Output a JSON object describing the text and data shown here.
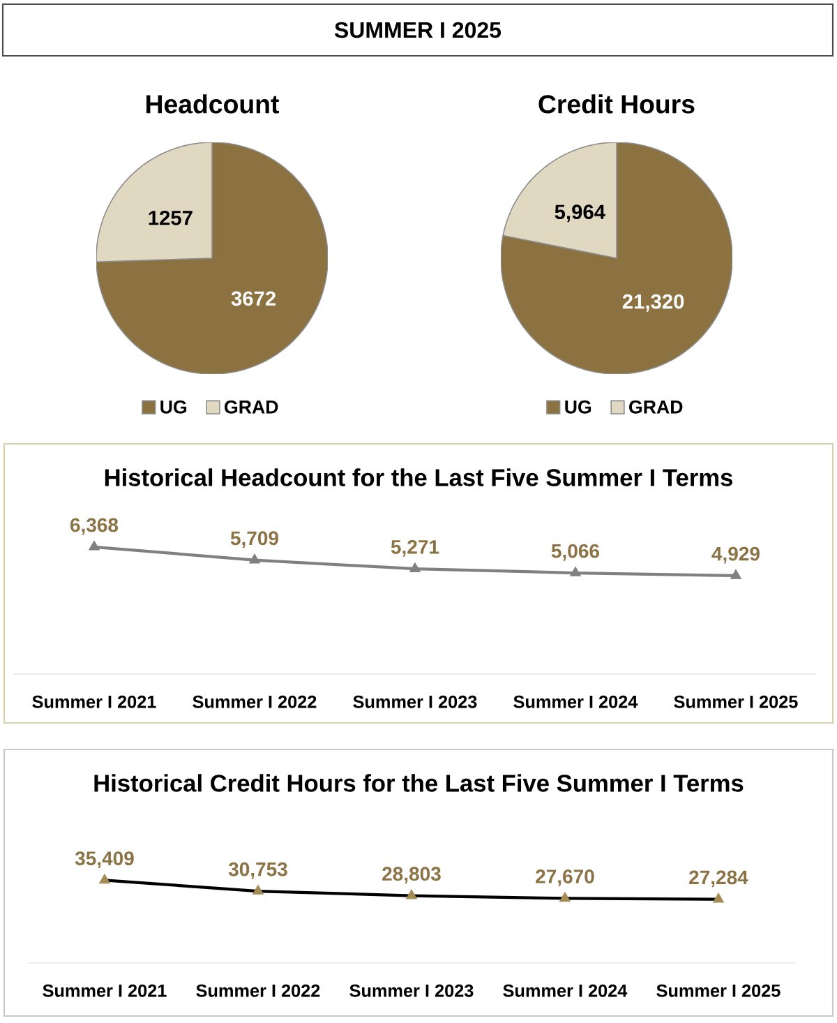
{
  "chart_data": [
    {
      "type": "other",
      "title": "SUMMER I 2025"
    },
    {
      "type": "pie",
      "title": "Headcount",
      "categories": [
        "UG",
        "GRAD"
      ],
      "values": [
        3672,
        1257
      ],
      "colors": [
        "#8b7240",
        "#e1d8c2"
      ],
      "value_labels": [
        "3672",
        "1257"
      ],
      "legend": "bottom"
    },
    {
      "type": "pie",
      "title": "Credit Hours",
      "categories": [
        "UG",
        "GRAD"
      ],
      "values": [
        21320,
        5964
      ],
      "colors": [
        "#8b7240",
        "#e1d8c2"
      ],
      "value_labels": [
        "21,320",
        "5,964"
      ],
      "legend": "bottom"
    },
    {
      "type": "line",
      "title": "Historical Headcount for the Last Five Summer I Terms",
      "categories": [
        "Summer I 2021",
        "Summer I 2022",
        "Summer I 2023",
        "Summer I 2024",
        "Summer I 2025"
      ],
      "values": [
        6368,
        5709,
        5271,
        5066,
        4929
      ],
      "color": "#808080",
      "marker": "triangle",
      "value_labels": [
        "6,368",
        "5,709",
        "5,271",
        "5,066",
        "4,929"
      ]
    },
    {
      "type": "line",
      "title": "Historical Credit Hours for the Last Five Summer I Terms",
      "categories": [
        "Summer I 2021",
        "Summer I 2022",
        "Summer I 2023",
        "Summer I 2024",
        "Summer I 2025"
      ],
      "values": [
        35409,
        30753,
        28803,
        27670,
        27284
      ],
      "color": "#000000",
      "colors": [
        "#a48b55",
        "#a48b55",
        "#a48b55",
        "#a48b55",
        "#a48b55"
      ],
      "marker": "triangle",
      "value_labels": [
        "35,409",
        "30,753",
        "28,803",
        "27,670",
        "27,284"
      ]
    }
  ]
}
